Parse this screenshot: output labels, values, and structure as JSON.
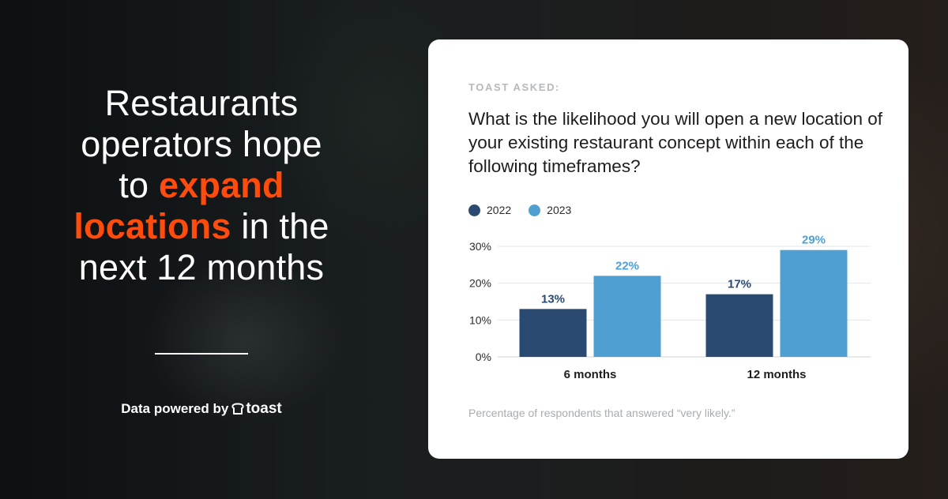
{
  "headline": {
    "line1": "Restaurants",
    "line2": "operators hope",
    "line3_pre": "to ",
    "line3_hl": "expand",
    "line4_hl": "locations",
    "line4_post": " in the",
    "line5": "next 12 months"
  },
  "powered": {
    "label": "Data powered by",
    "brand": "toast"
  },
  "card": {
    "asked_label": "TOAST ASKED:",
    "question": "What is the likelihood you will open a new location of your existing restaurant concept within each of the following timeframes?",
    "footnote": "Percentage of respondents that answered “very likely.”"
  },
  "colors": {
    "accent": "#ff4c0d",
    "series_2022": "#2b4a72",
    "series_2023": "#4f9fd3"
  },
  "chart_data": {
    "type": "bar",
    "title": "What is the likelihood you will open a new location of your existing restaurant concept within each of the following timeframes?",
    "categories": [
      "6 months",
      "12 months"
    ],
    "series": [
      {
        "name": "2022",
        "values": [
          13,
          17
        ],
        "labels": [
          "13%",
          "17%"
        ]
      },
      {
        "name": "2023",
        "values": [
          22,
          29
        ],
        "labels": [
          "22%",
          "29%"
        ]
      }
    ],
    "ylim": [
      0,
      30
    ],
    "yticks": [
      0,
      10,
      20,
      30
    ],
    "ytick_labels": [
      "0%",
      "10%",
      "20%",
      "30%"
    ],
    "xlabel": "",
    "ylabel": "",
    "grid": true,
    "legend": "top-left"
  }
}
